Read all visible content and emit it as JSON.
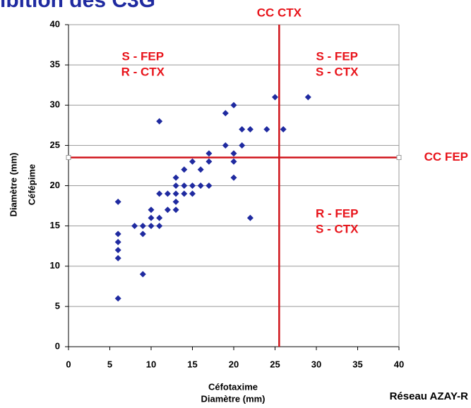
{
  "chart_data": {
    "type": "scatter",
    "title": "ibition des C3G",
    "x_label": "Céfotaxime",
    "x_label_2": "Diamètre (mm)",
    "y_label": "Céfépime",
    "y_label_2": "Diamètre (mm)",
    "source": "Réseau AZAY-R",
    "xlim": [
      0,
      40
    ],
    "ylim": [
      0,
      40
    ],
    "xticks": [
      0,
      5,
      10,
      15,
      20,
      25,
      30,
      35,
      40
    ],
    "yticks": [
      0,
      5,
      10,
      15,
      20,
      25,
      30,
      35,
      40
    ],
    "grid": true,
    "series": [
      {
        "color": "#1f2aa0",
        "x": [
          6,
          6,
          6,
          6,
          6,
          6,
          8,
          9,
          9,
          9,
          10,
          10,
          10,
          11,
          11,
          11,
          11,
          12,
          12,
          13,
          13,
          13,
          13,
          13,
          14,
          14,
          14,
          15,
          15,
          15,
          16,
          16,
          17,
          17,
          17,
          19,
          19,
          20,
          20,
          20,
          20,
          21,
          21,
          22,
          22,
          24,
          25,
          26,
          29
        ],
        "values": [
          6,
          11,
          12,
          13,
          14,
          18,
          15,
          9,
          14,
          15,
          15,
          16,
          17,
          15,
          16,
          19,
          28,
          17,
          19,
          17,
          18,
          19,
          20,
          21,
          19,
          20,
          22,
          19,
          20,
          23,
          20,
          22,
          20,
          23,
          24,
          25,
          29,
          21,
          23,
          24,
          30,
          25,
          27,
          16,
          27,
          27,
          31,
          27,
          31
        ]
      }
    ],
    "reference_lines": [
      {
        "axis": "x",
        "value": 25.5,
        "label": "CC CTX",
        "color": "#d0141b"
      },
      {
        "axis": "y",
        "value": 23.5,
        "label": "CC FEP",
        "color": "#d0141b"
      }
    ],
    "annotations": [
      {
        "line1": "S - FEP",
        "line2": "R - CTX",
        "x": 9,
        "y": 35
      },
      {
        "line1": "S - FEP",
        "line2": "S - CTX",
        "x": 32.5,
        "y": 35
      },
      {
        "line1": "R - FEP",
        "line2": "S - CTX",
        "x": 32.5,
        "y": 15.5
      }
    ]
  }
}
